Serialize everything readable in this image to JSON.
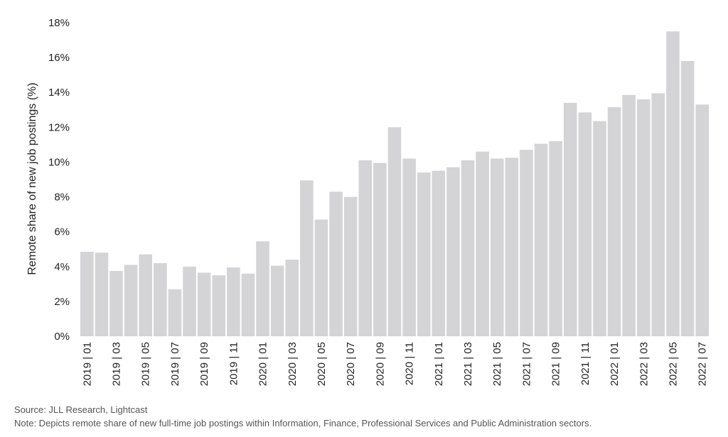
{
  "chart_data": {
    "type": "bar",
    "title": "",
    "xlabel": "",
    "ylabel": "Remote share of new job postings (%)",
    "ylim": [
      0,
      18
    ],
    "yticks": [
      "0%",
      "2%",
      "4%",
      "6%",
      "8%",
      "10%",
      "12%",
      "14%",
      "16%",
      "18%"
    ],
    "bar_color": "#d4d4d6",
    "grid": false,
    "categories": [
      "2019 | 01",
      "2019 | 02",
      "2019 | 03",
      "2019 | 04",
      "2019 | 05",
      "2019 | 06",
      "2019 | 07",
      "2019 | 08",
      "2019 | 09",
      "2019 | 10",
      "2019 | 11",
      "2019 | 12",
      "2020 | 01",
      "2020 | 02",
      "2020 | 03",
      "2020 | 04",
      "2020 | 05",
      "2020 | 06",
      "2020 | 07",
      "2020 | 08",
      "2020 | 09",
      "2020 | 10",
      "2020 | 11",
      "2020 | 12",
      "2021 | 01",
      "2021 | 02",
      "2021 | 03",
      "2021 | 04",
      "2021 | 05",
      "2021 | 06",
      "2021 | 07",
      "2021 | 08",
      "2021 | 09",
      "2021 | 10",
      "2021 | 11",
      "2021 | 12",
      "2022 | 01",
      "2022 | 02",
      "2022 | 03",
      "2022 | 04",
      "2022 | 05",
      "2022 | 06",
      "2022 | 07"
    ],
    "shown_tick_labels": [
      "2019 | 01",
      "2019 | 03",
      "2019 | 05",
      "2019 | 07",
      "2019 | 09",
      "2019 | 11",
      "2020 | 01",
      "2020 | 03",
      "2020 | 05",
      "2020 | 07",
      "2020 | 09",
      "2020 | 11",
      "2021 | 01",
      "2021 | 03",
      "2021 | 05",
      "2021 | 07",
      "2021 | 09",
      "2021 | 11",
      "2022 | 01",
      "2022 | 03",
      "2022 | 05",
      "2022 | 07"
    ],
    "values": [
      4.85,
      4.8,
      3.75,
      4.1,
      4.7,
      4.2,
      2.7,
      4.0,
      3.65,
      3.5,
      3.95,
      3.6,
      5.45,
      4.05,
      4.4,
      8.95,
      6.7,
      8.3,
      8.0,
      10.1,
      9.95,
      12.0,
      10.2,
      9.4,
      9.5,
      9.7,
      10.1,
      10.6,
      10.2,
      10.25,
      10.7,
      11.05,
      11.2,
      13.4,
      12.85,
      12.35,
      13.15,
      13.85,
      13.6,
      13.95,
      17.5,
      15.8,
      13.3
    ]
  },
  "footnotes": {
    "source": "Source: JLL Research, Lightcast",
    "note": "Note: Depicts remote share of new full-time job postings within Information, Finance, Professional Services and Public Administration sectors."
  }
}
